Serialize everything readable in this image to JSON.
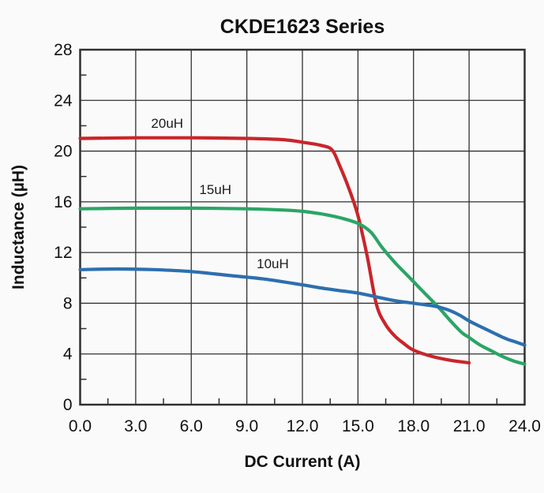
{
  "chart_data": {
    "type": "line",
    "title": "CKDE1623 Series",
    "xlabel": "DC Current (A)",
    "ylabel": "Inductance (µH)",
    "xlim": [
      0,
      24
    ],
    "ylim": [
      0,
      28
    ],
    "grid": true,
    "legend_position": "inline-labels",
    "x_major_ticks": [
      0,
      3,
      6,
      9,
      12,
      15,
      18,
      21,
      24
    ],
    "x_tick_labels": [
      "0.0",
      "3.0",
      "6.0",
      "9.0",
      "12.0",
      "15.0",
      "18.0",
      "21.0",
      "24.0"
    ],
    "x_minor_ticks": [
      1.5,
      4.5,
      7.5,
      10.5,
      13.5,
      16.5,
      19.5,
      22.5
    ],
    "y_major_ticks": [
      0,
      4,
      8,
      12,
      16,
      20,
      24,
      28
    ],
    "y_tick_labels": [
      "0",
      "4",
      "8",
      "12",
      "16",
      "20",
      "24",
      "28"
    ],
    "y_minor_ticks": [
      2,
      6,
      10,
      14,
      18,
      22,
      26
    ],
    "colors": {
      "grid": "#303030",
      "border": "#303030",
      "background": "#fafafa",
      "plot_background": "#fdfdfd"
    },
    "series": [
      {
        "name": "20uH",
        "color": "#c9252b",
        "label": "20uH",
        "label_pos": {
          "x": 4.7,
          "y": 22.2
        },
        "points": [
          [
            0,
            21.0
          ],
          [
            3,
            21.05
          ],
          [
            6,
            21.05
          ],
          [
            9,
            21.0
          ],
          [
            11,
            20.9
          ],
          [
            12,
            20.7
          ],
          [
            13,
            20.45
          ],
          [
            13.6,
            20.1
          ],
          [
            14,
            18.9
          ],
          [
            14.5,
            17.1
          ],
          [
            15,
            14.9
          ],
          [
            15.5,
            11.7
          ],
          [
            16,
            7.9
          ],
          [
            16.5,
            6.3
          ],
          [
            17,
            5.4
          ],
          [
            17.5,
            4.8
          ],
          [
            18,
            4.3
          ],
          [
            19,
            3.8
          ],
          [
            20,
            3.5
          ],
          [
            21,
            3.3
          ]
        ]
      },
      {
        "name": "15uH",
        "color": "#2ba566",
        "label": "15uH",
        "label_pos": {
          "x": 7.3,
          "y": 17.0
        },
        "points": [
          [
            0,
            15.45
          ],
          [
            3,
            15.5
          ],
          [
            6,
            15.5
          ],
          [
            9,
            15.45
          ],
          [
            11,
            15.35
          ],
          [
            12,
            15.25
          ],
          [
            13,
            15.05
          ],
          [
            14,
            14.75
          ],
          [
            15,
            14.3
          ],
          [
            15.7,
            13.6
          ],
          [
            16.3,
            12.4
          ],
          [
            17,
            11.2
          ],
          [
            17.6,
            10.3
          ],
          [
            18.2,
            9.4
          ],
          [
            18.8,
            8.5
          ],
          [
            19.4,
            7.6
          ],
          [
            20,
            6.6
          ],
          [
            20.6,
            5.7
          ],
          [
            21,
            5.3
          ],
          [
            21.6,
            4.7
          ],
          [
            22.2,
            4.25
          ],
          [
            22.8,
            3.8
          ],
          [
            23.4,
            3.45
          ],
          [
            24,
            3.2
          ]
        ]
      },
      {
        "name": "10uH",
        "color": "#2d6fae",
        "label": "10uH",
        "label_pos": {
          "x": 10.4,
          "y": 11.15
        },
        "points": [
          [
            0,
            10.65
          ],
          [
            2,
            10.7
          ],
          [
            4,
            10.65
          ],
          [
            6,
            10.5
          ],
          [
            8,
            10.2
          ],
          [
            10,
            9.9
          ],
          [
            12,
            9.45
          ],
          [
            13,
            9.2
          ],
          [
            14,
            9.0
          ],
          [
            15,
            8.8
          ],
          [
            16,
            8.5
          ],
          [
            17,
            8.2
          ],
          [
            18,
            8.0
          ],
          [
            19,
            7.8
          ],
          [
            19.5,
            7.65
          ],
          [
            20,
            7.4
          ],
          [
            20.5,
            7.05
          ],
          [
            21,
            6.6
          ],
          [
            21.7,
            6.1
          ],
          [
            22.4,
            5.6
          ],
          [
            23,
            5.2
          ],
          [
            23.5,
            4.95
          ],
          [
            24,
            4.7
          ]
        ]
      }
    ]
  }
}
